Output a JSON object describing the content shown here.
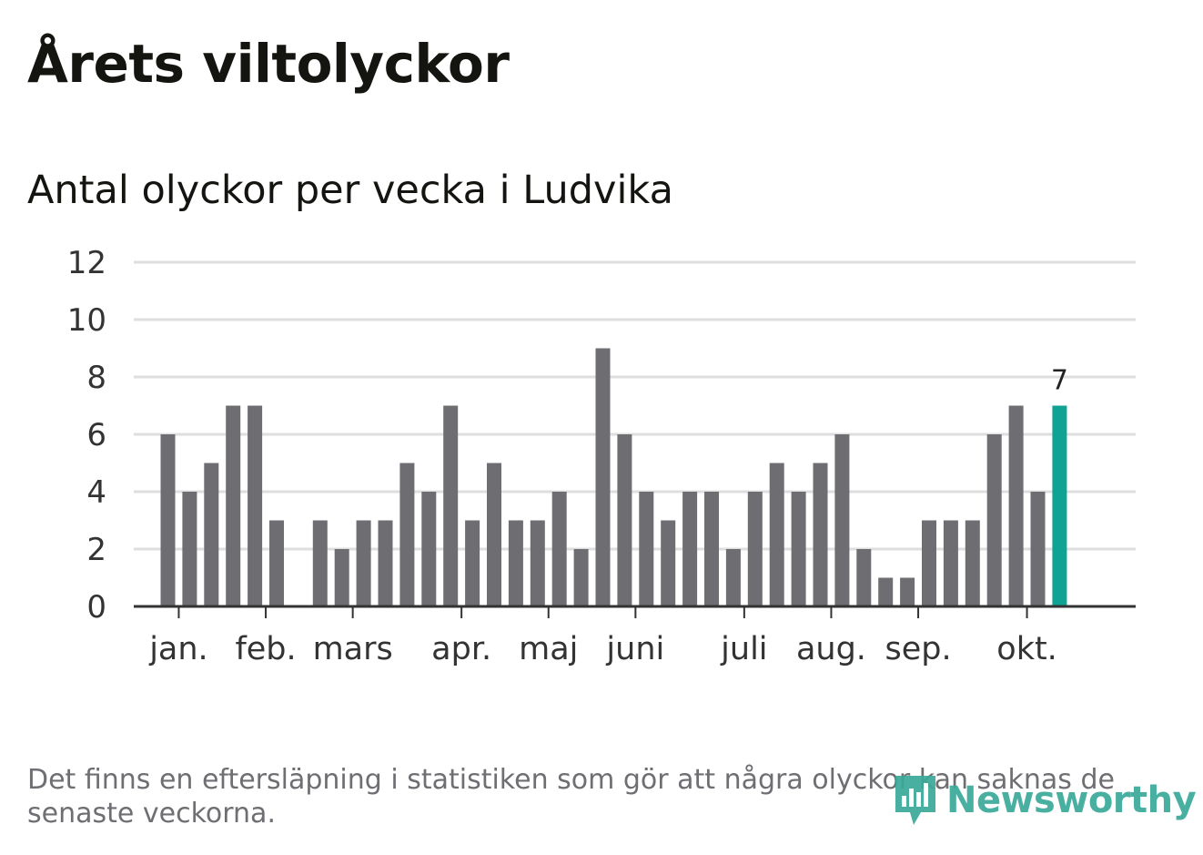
{
  "header": {
    "title": "Årets viltolyckor",
    "subtitle": "Antal olyckor per vecka i Ludvika"
  },
  "footnote": "Det finns en eftersläpning i statistiken som gör att några olyckor kan saknas de senaste veckorna.",
  "logo": {
    "text": "Newsworthy",
    "icon": "bar-chart-badge-icon"
  },
  "colors": {
    "bar": "#6e6d72",
    "highlight": "#10a395",
    "grid": "#dedede",
    "axis": "#333333",
    "tick_label": "#333333",
    "logo": "#3aa99a"
  },
  "chart_data": {
    "type": "bar",
    "title": "Antal olyckor per vecka i Ludvika",
    "xlabel": "",
    "ylabel": "",
    "ylim": [
      0,
      12
    ],
    "yticks": [
      0,
      2,
      4,
      6,
      8,
      10,
      12
    ],
    "grid": true,
    "weeks": [
      1,
      2,
      3,
      4,
      5,
      6,
      7,
      8,
      9,
      10,
      11,
      12,
      13,
      14,
      15,
      16,
      17,
      18,
      19,
      20,
      21,
      22,
      23,
      24,
      25,
      26,
      27,
      28,
      29,
      30,
      31,
      32,
      33,
      34,
      35,
      36,
      37,
      38,
      39,
      40,
      41,
      42
    ],
    "values": [
      6,
      4,
      5,
      7,
      7,
      3,
      0,
      3,
      2,
      3,
      3,
      5,
      4,
      7,
      3,
      5,
      3,
      3,
      4,
      2,
      9,
      6,
      4,
      3,
      4,
      4,
      2,
      4,
      5,
      4,
      5,
      6,
      2,
      1,
      1,
      3,
      3,
      3,
      6,
      7,
      4,
      7
    ],
    "highlight_index": 41,
    "highlight_label": "7",
    "month_ticks": [
      {
        "label": "jan.",
        "week": 1.5
      },
      {
        "label": "feb.",
        "week": 5.5
      },
      {
        "label": "mars",
        "week": 9.5
      },
      {
        "label": "apr.",
        "week": 14.5
      },
      {
        "label": "maj",
        "week": 18.5
      },
      {
        "label": "juni",
        "week": 22.5
      },
      {
        "label": "juli",
        "week": 27.5
      },
      {
        "label": "aug.",
        "week": 31.5
      },
      {
        "label": "sep.",
        "week": 35.5
      },
      {
        "label": "okt.",
        "week": 40.5
      }
    ]
  }
}
